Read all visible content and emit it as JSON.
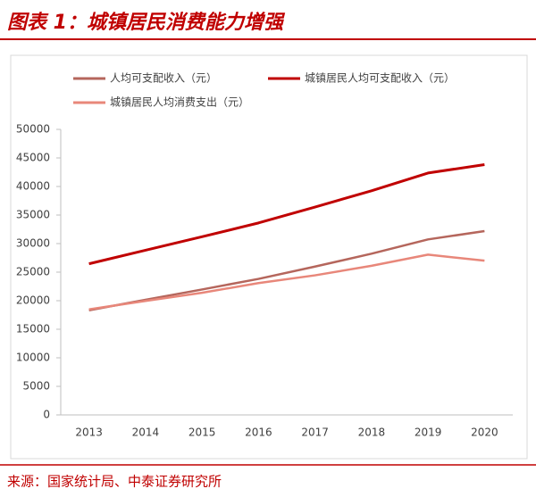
{
  "chart_data": {
    "type": "line",
    "title": "图表 1：城镇居民消费能力增强",
    "source": "来源：国家统计局、中泰证券研究所",
    "categories": [
      "2013",
      "2014",
      "2015",
      "2016",
      "2017",
      "2018",
      "2019",
      "2020"
    ],
    "series": [
      {
        "name": "人均可支配收入（元）",
        "color": "#b5665c",
        "values": [
          18311,
          20167,
          21966,
          23821,
          25974,
          28228,
          30733,
          32189
        ]
      },
      {
        "name": "城镇居民人均可支配收入（元）",
        "color": "#c00000",
        "values": [
          26467,
          28844,
          31195,
          33616,
          36396,
          39251,
          42359,
          43834
        ]
      },
      {
        "name": "城镇居民人均消费支出（元）",
        "color": "#e8877a",
        "values": [
          18488,
          19968,
          21392,
          23079,
          24445,
          26112,
          28063,
          27007
        ]
      }
    ],
    "ylim": [
      0,
      50000
    ],
    "yticks": [
      0,
      5000,
      10000,
      15000,
      20000,
      25000,
      30000,
      35000,
      40000,
      45000,
      50000
    ],
    "grid": false,
    "legend": "top"
  }
}
